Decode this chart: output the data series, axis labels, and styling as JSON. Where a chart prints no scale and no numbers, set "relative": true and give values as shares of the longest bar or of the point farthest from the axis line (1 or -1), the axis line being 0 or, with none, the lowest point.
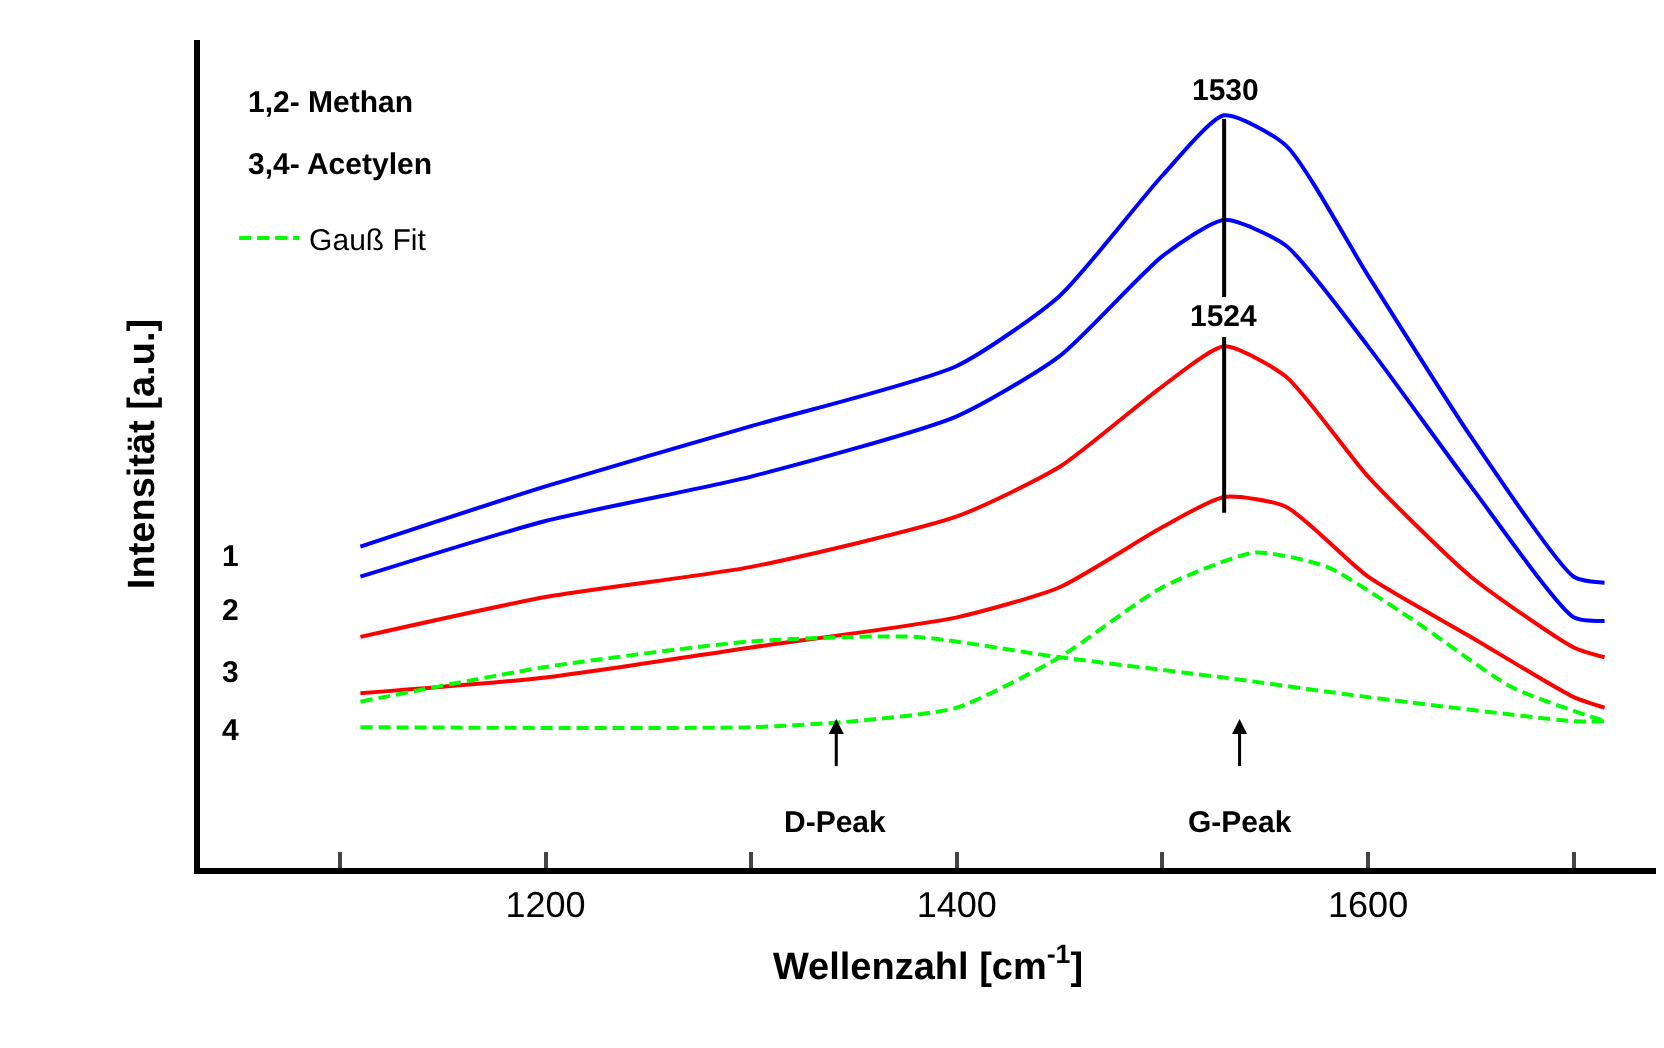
{
  "chart_data": {
    "type": "line",
    "relative": true,
    "xlabel": "Wellenzahl [cm$^{-1}$]",
    "ylabel": "Intensität [a.u.]",
    "xlim": [
      1032,
      1740
    ],
    "xticks": [
      {
        "value": 1100,
        "label": null
      },
      1200,
      {
        "value": 1300,
        "label": null
      },
      1400,
      {
        "value": 1500,
        "label": null
      },
      1600,
      {
        "value": 1700,
        "label": null
      }
    ],
    "legend": "top left",
    "marker": "none",
    "series": [
      {
        "color": "#0000ff",
        "x": [
          1110,
          1200,
          1300,
          1400,
          1450,
          1500,
          1530,
          1560,
          1600,
          1650,
          1700,
          1715
        ],
        "values": [
          0.427,
          0.507,
          0.587,
          0.667,
          0.76,
          0.92,
          1.0,
          0.96,
          0.787,
          0.573,
          0.387,
          0.379
        ]
      },
      {
        "color": "#0000ff",
        "x": [
          1110,
          1200,
          1300,
          1400,
          1450,
          1500,
          1530,
          1560,
          1600,
          1650,
          1700,
          1715
        ],
        "values": [
          0.387,
          0.461,
          0.52,
          0.6,
          0.68,
          0.813,
          0.861,
          0.827,
          0.693,
          0.507,
          0.333,
          0.328
        ]
      },
      {
        "color": "#ff0000",
        "x": [
          1110,
          1200,
          1300,
          1400,
          1450,
          1500,
          1530,
          1560,
          1600,
          1650,
          1700,
          1715
        ],
        "values": [
          0.307,
          0.36,
          0.4,
          0.467,
          0.533,
          0.64,
          0.693,
          0.653,
          0.52,
          0.387,
          0.293,
          0.28
        ]
      },
      {
        "color": "#ff0000",
        "x": [
          1110,
          1200,
          1300,
          1400,
          1450,
          1500,
          1530,
          1560,
          1600,
          1650,
          1700,
          1715
        ],
        "values": [
          0.232,
          0.253,
          0.293,
          0.333,
          0.373,
          0.453,
          0.493,
          0.48,
          0.387,
          0.307,
          0.227,
          0.213
        ]
      },
      {
        "name": "Gauß Fit",
        "color": "#00ff00",
        "line_style": "dashed",
        "x": [
          1110,
          1200,
          1300,
          1380,
          1450,
          1530,
          1600,
          1700,
          1715
        ],
        "values": [
          0.221,
          0.267,
          0.301,
          0.307,
          0.28,
          0.253,
          0.227,
          0.195,
          0.195
        ]
      },
      {
        "color": "#00ff00",
        "line_style": "dashed",
        "x": [
          1110,
          1300,
          1350,
          1400,
          1450,
          1500,
          1545,
          1580,
          1620,
          1670,
          1715
        ],
        "values": [
          0.187,
          0.187,
          0.195,
          0.213,
          0.28,
          0.373,
          0.419,
          0.4,
          0.333,
          0.24,
          0.195
        ]
      },
      {
        "color": "#000000",
        "x": [
          1530,
          1530
        ],
        "values": [
          0.995,
          0.472
        ]
      }
    ],
    "annotations": [
      "1,2- Methan",
      "3,4- Acetylen",
      "1",
      "2",
      "3",
      "4",
      {
        "text": "1530",
        "x": 1530,
        "y": 0.995
      },
      {
        "text": "1524",
        "x": 1530,
        "y": 0.693
      },
      "D-Peak",
      "G-Peak"
    ]
  }
}
